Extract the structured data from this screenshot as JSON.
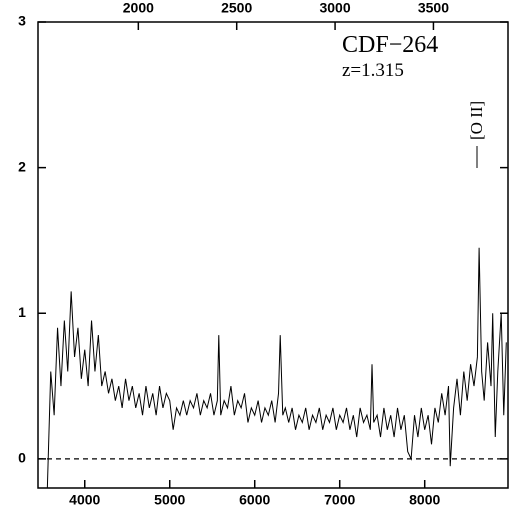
{
  "chart_data": {
    "type": "line",
    "color": "#000000",
    "annotations": [
      "CDF−264",
      "z=1.315",
      "[O II]"
    ],
    "x": [
      3560,
      3600,
      3640,
      3680,
      3720,
      3760,
      3800,
      3840,
      3880,
      3920,
      3960,
      4000,
      4040,
      4080,
      4120,
      4160,
      4200,
      4240,
      4280,
      4320,
      4360,
      4400,
      4440,
      4480,
      4520,
      4560,
      4600,
      4640,
      4680,
      4720,
      4760,
      4800,
      4840,
      4880,
      4920,
      4960,
      5000,
      5040,
      5080,
      5120,
      5160,
      5200,
      5240,
      5280,
      5320,
      5360,
      5400,
      5440,
      5480,
      5520,
      5560,
      5577,
      5600,
      5640,
      5680,
      5720,
      5760,
      5800,
      5840,
      5880,
      5920,
      5960,
      6000,
      6040,
      6080,
      6120,
      6160,
      6200,
      6240,
      6280,
      6300,
      6330,
      6360,
      6400,
      6440,
      6480,
      6520,
      6560,
      6600,
      6640,
      6680,
      6720,
      6760,
      6800,
      6840,
      6880,
      6920,
      6960,
      7000,
      7040,
      7080,
      7120,
      7160,
      7200,
      7240,
      7280,
      7320,
      7360,
      7380,
      7400,
      7440,
      7480,
      7520,
      7560,
      7600,
      7640,
      7680,
      7720,
      7760,
      7800,
      7840,
      7880,
      7920,
      7960,
      8000,
      8040,
      8080,
      8120,
      8160,
      8200,
      8240,
      8280,
      8300,
      8340,
      8380,
      8420,
      8460,
      8500,
      8540,
      8580,
      8620,
      8640,
      8670,
      8700,
      8740,
      8780,
      8800,
      8830,
      8860,
      8900,
      8930,
      8960
    ],
    "values": [
      -0.2,
      0.6,
      0.3,
      0.9,
      0.5,
      0.95,
      0.6,
      1.15,
      0.7,
      0.9,
      0.55,
      0.75,
      0.5,
      0.95,
      0.6,
      0.85,
      0.5,
      0.6,
      0.45,
      0.55,
      0.4,
      0.5,
      0.35,
      0.55,
      0.4,
      0.5,
      0.35,
      0.45,
      0.3,
      0.5,
      0.35,
      0.45,
      0.3,
      0.5,
      0.35,
      0.45,
      0.4,
      0.2,
      0.35,
      0.3,
      0.4,
      0.3,
      0.4,
      0.35,
      0.45,
      0.3,
      0.4,
      0.35,
      0.45,
      0.3,
      0.4,
      0.85,
      0.3,
      0.4,
      0.35,
      0.5,
      0.3,
      0.4,
      0.35,
      0.45,
      0.25,
      0.35,
      0.3,
      0.4,
      0.25,
      0.35,
      0.3,
      0.4,
      0.25,
      0.45,
      0.85,
      0.3,
      0.35,
      0.25,
      0.35,
      0.2,
      0.3,
      0.25,
      0.35,
      0.2,
      0.3,
      0.25,
      0.35,
      0.2,
      0.3,
      0.25,
      0.35,
      0.2,
      0.3,
      0.25,
      0.35,
      0.2,
      0.3,
      0.15,
      0.35,
      0.25,
      0.3,
      0.2,
      0.65,
      0.25,
      0.3,
      0.15,
      0.35,
      0.2,
      0.3,
      0.15,
      0.35,
      0.2,
      0.3,
      0.05,
      0.0,
      0.3,
      0.15,
      0.35,
      0.2,
      0.3,
      0.1,
      0.35,
      0.25,
      0.45,
      0.3,
      0.5,
      -0.05,
      0.35,
      0.55,
      0.3,
      0.6,
      0.4,
      0.65,
      0.5,
      0.7,
      1.45,
      0.6,
      0.4,
      0.8,
      0.5,
      1.0,
      0.15,
      0.6,
      1.0,
      0.3,
      0.8
    ],
    "xlim": [
      3450,
      8980
    ],
    "xticks": [
      4000,
      5000,
      6000,
      7000,
      8000
    ],
    "x2lim": [
      1490,
      3879
    ],
    "x2ticks": [
      2000,
      2500,
      3000,
      3500
    ],
    "ylim": [
      -0.2,
      3
    ],
    "yticks": [
      0,
      1,
      2,
      3
    ],
    "hlines": [
      0
    ]
  }
}
